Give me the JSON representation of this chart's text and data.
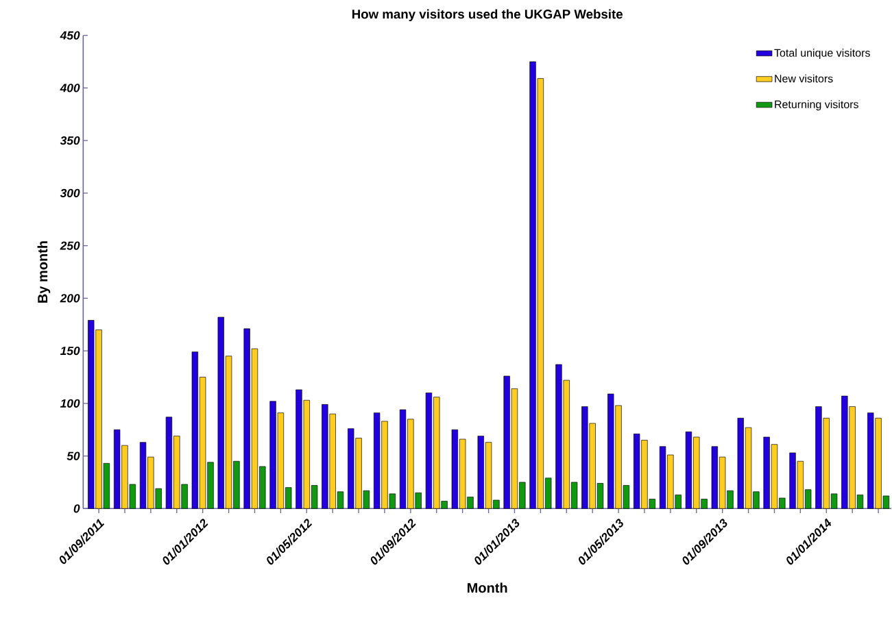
{
  "chart_data": {
    "type": "bar",
    "title": "How many visitors used the UKGAP Website",
    "xlabel": "Month",
    "ylabel": "By month",
    "categories": [
      "01/09/2011",
      null,
      null,
      null,
      "01/01/2012",
      null,
      null,
      null,
      "01/05/2012",
      null,
      null,
      null,
      "01/09/2012",
      null,
      null,
      null,
      "01/01/2013",
      null,
      null,
      null,
      "01/05/2013",
      null,
      null,
      null,
      "01/09/2013",
      null,
      null,
      null,
      "01/01/2014",
      null,
      null
    ],
    "series": [
      {
        "name": "Total unique visitors",
        "color": "#2200dd",
        "values": [
          179,
          75,
          63,
          87,
          149,
          182,
          171,
          102,
          113,
          99,
          76,
          91,
          94,
          110,
          75,
          69,
          126,
          425,
          137,
          97,
          109,
          71,
          59,
          73,
          59,
          86,
          68,
          53,
          97,
          107,
          91
        ]
      },
      {
        "name": "New visitors",
        "color": "#ffcc22",
        "values": [
          170,
          60,
          49,
          69,
          125,
          145,
          152,
          91,
          103,
          90,
          67,
          83,
          85,
          106,
          66,
          63,
          114,
          409,
          122,
          81,
          98,
          65,
          51,
          68,
          49,
          77,
          61,
          45,
          86,
          97,
          86
        ]
      },
      {
        "name": "Returning visitors",
        "color": "#119911",
        "values": [
          43,
          23,
          19,
          23,
          44,
          45,
          40,
          20,
          22,
          16,
          17,
          14,
          15,
          7,
          11,
          8,
          25,
          29,
          25,
          24,
          22,
          9,
          13,
          9,
          17,
          16,
          10,
          18,
          14,
          13,
          12
        ]
      }
    ],
    "ylim": [
      0,
      450
    ],
    "yticks": [
      0,
      50,
      100,
      150,
      200,
      250,
      300,
      350,
      400,
      450
    ],
    "grid": false,
    "legend": "top right"
  }
}
